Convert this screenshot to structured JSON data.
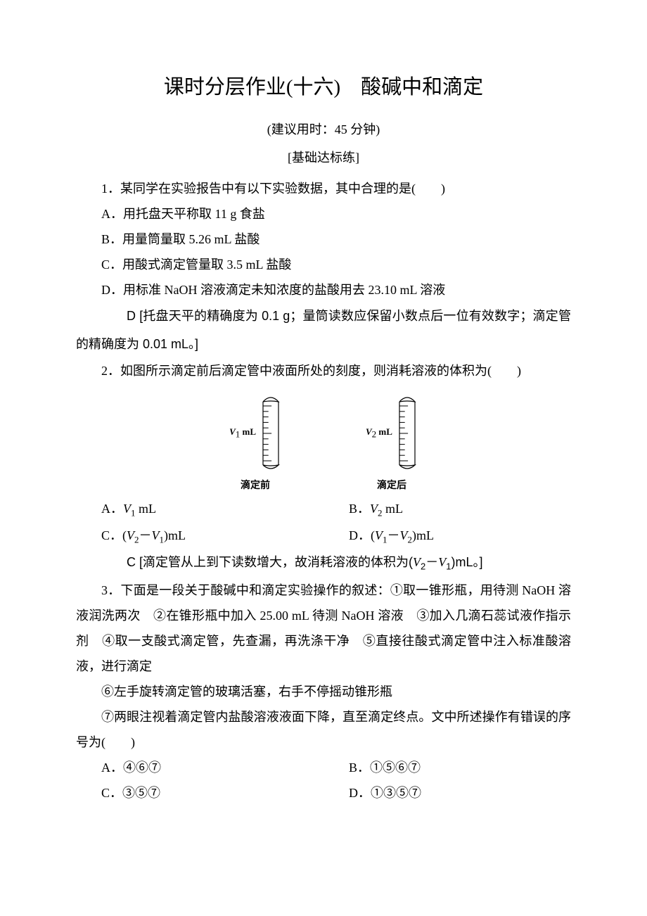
{
  "title": "课时分层作业(十六)　酸碱中和滴定",
  "subtitle": "(建议用时：45 分钟)",
  "section": "[基础达标练]",
  "q1": {
    "stem": "1．某同学在实验报告中有以下实验数据，其中合理的是(　　)",
    "A": "A．用托盘天平称取 11 g 食盐",
    "B": "B．用量筒量取 5.26 mL 盐酸",
    "C": "C．用酸式滴定管量取 3.5 mL 盐酸",
    "D": "D．用标准 NaOH 溶液滴定未知浓度的盐酸用去 23.10 mL 溶液",
    "ans_letter": "D",
    "ans_text": "[托盘天平的精确度为 0.1 g；量筒读数应保留小数点后一位有效数字；滴定管的精确度为 0.01 mL。]"
  },
  "q2": {
    "stem": "2．如图所示滴定前后滴定管中液面所处的刻度，则消耗溶液的体积为(　　)",
    "diagram": {
      "left_label_v": "V",
      "left_label_sub": "1",
      "unit": "mL",
      "right_label_v": "V",
      "right_label_sub": "2",
      "left_caption": "滴定前",
      "right_caption": "滴定后",
      "tick_count": 11,
      "burette_width": 22,
      "burette_height": 110,
      "stroke": "#000000"
    },
    "A_pre": "A．",
    "A_v": "V",
    "A_sub": "1",
    "A_unit": " mL",
    "B_pre": "B．",
    "B_v": "V",
    "B_sub": "2",
    "B_unit": " mL",
    "C_pre": "C．(",
    "C_v1": "V",
    "C_s1": "2",
    "C_mid": "－",
    "C_v2": "V",
    "C_s2": "1",
    "C_post": ")mL",
    "D_pre": "D．(",
    "D_v1": "V",
    "D_s1": "1",
    "D_mid": "－",
    "D_v2": "V",
    "D_s2": "2",
    "D_post": ")mL",
    "ans_letter": "C",
    "ans_text_pre": "[滴定管从上到下读数增大，故消耗溶液的体积为(",
    "ans_v1": "V",
    "ans_s1": "2",
    "ans_mid": "－",
    "ans_v2": "V",
    "ans_s2": "1",
    "ans_text_post": ")mL。]"
  },
  "q3": {
    "stem": "3．下面是一段关于酸碱中和滴定实验操作的叙述：①取一锥形瓶，用待测 NaOH 溶液润洗两次　②在锥形瓶中加入 25.00 mL 待测 NaOH 溶液　③加入几滴石蕊试液作指示剂　④取一支酸式滴定管，先查漏，再洗涤干净　⑤直接往酸式滴定管中注入标准酸溶液，进行滴定",
    "line6": "⑥左手旋转滴定管的玻璃活塞，右手不停摇动锥形瓶",
    "line7": "⑦两眼注视着滴定管内盐酸溶液液面下降，直至滴定终点。文中所述操作有错误的序号为(　　)",
    "A": "A．④⑥⑦",
    "B": "B．①⑤⑥⑦",
    "C": "C．③⑤⑦",
    "D": "D．①③⑤⑦"
  }
}
